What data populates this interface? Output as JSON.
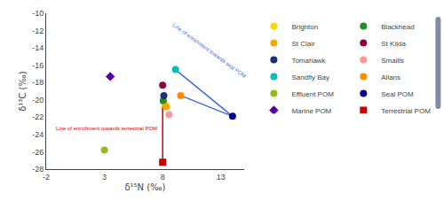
{
  "chart_data": {
    "type": "scatter",
    "xlabel": "δ¹⁵N (‰)",
    "ylabel": "δ¹³C (‰)",
    "series": [
      {
        "name": "Brighton",
        "color": "#FFD700",
        "marker": "circle",
        "x": [
          8.2
        ],
        "y": [
          -20.5
        ]
      },
      {
        "name": "Blackhead",
        "color": "#228B22",
        "marker": "circle",
        "x": [
          8.05
        ],
        "y": [
          -20.1
        ]
      },
      {
        "name": "St Clair",
        "color": "#FFA500",
        "marker": "circle",
        "x": [
          8.3
        ],
        "y": [
          -20.8
        ]
      },
      {
        "name": "St Kilda",
        "color": "#8B0045",
        "marker": "circle",
        "x": [
          8.0
        ],
        "y": [
          -18.3
        ]
      },
      {
        "name": "Tomahawk",
        "color": "#1a2f7a",
        "marker": "circle",
        "x": [
          8.1
        ],
        "y": [
          -19.5
        ]
      },
      {
        "name": "Smaills",
        "color": "#FF9999",
        "marker": "circle",
        "x": [
          8.55
        ],
        "y": [
          -21.7
        ]
      },
      {
        "name": "Sandfly Bay",
        "color": "#00BFBF",
        "marker": "circle",
        "x": [
          9.1
        ],
        "y": [
          -16.5
        ]
      },
      {
        "name": "Allans",
        "color": "#FF8C00",
        "marker": "circle",
        "x": [
          9.55
        ],
        "y": [
          -19.5
        ]
      },
      {
        "name": "Effluent POM",
        "color": "#8FBC22",
        "marker": "circle",
        "x": [
          3.0
        ],
        "y": [
          -25.8
        ]
      },
      {
        "name": "Seal POM",
        "color": "#00008B",
        "marker": "circle",
        "x": [
          14.0
        ],
        "y": [
          -21.9
        ]
      },
      {
        "name": "Marine POM",
        "color": "#5500AA",
        "marker": "diamond",
        "x": [
          3.5
        ],
        "y": [
          -17.3
        ]
      },
      {
        "name": "Terrestrial POM",
        "color": "#CC0000",
        "marker": "square",
        "x": [
          8.0
        ],
        "y": [
          -27.2
        ]
      }
    ],
    "lines": [
      {
        "color": "#4169E1",
        "x": [
          9.1,
          14.0
        ],
        "y": [
          -16.5,
          -21.9
        ]
      },
      {
        "color": "#4169E1",
        "x": [
          9.55,
          14.0
        ],
        "y": [
          -19.5,
          -21.9
        ]
      },
      {
        "color": "#CC0000",
        "x": [
          8.0,
          8.0
        ],
        "y": [
          -19.5,
          -27.2
        ]
      }
    ],
    "annotations": [
      {
        "text": "Line of enrichment towards seal POM",
        "x": 12.0,
        "y": -17.8,
        "color": "#4169E1"
      },
      {
        "text": "Line of enrichment towards terrestrial POM",
        "x": 8.0,
        "y": -23.3,
        "color": "#CC0000"
      }
    ],
    "xlim": [
      -2,
      15
    ],
    "ylim": [
      -28,
      -10
    ],
    "xticks": [
      -2,
      3,
      8,
      13
    ],
    "yticks": [
      -10,
      -12,
      -14,
      -16,
      -18,
      -20,
      -22,
      -24,
      -26,
      -28
    ],
    "grid": false,
    "legend": "right"
  }
}
